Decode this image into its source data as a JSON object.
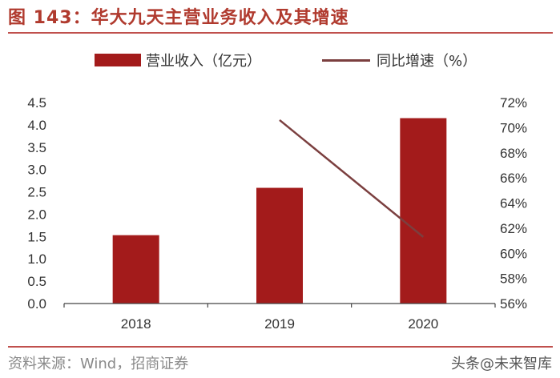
{
  "title": "图 143：华大九天主营业务收入及其增速",
  "source": "资料来源：Wind，招商证券",
  "watermark": "头条@未来智库",
  "colors": {
    "bar": "#a31b1b",
    "line": "#7b3f3f",
    "accent": "#c0504d"
  },
  "chart_data": {
    "type": "bar+line",
    "categories": [
      "2018",
      "2019",
      "2020"
    ],
    "series": [
      {
        "name": "营业收入（亿元）",
        "type": "bar",
        "axis": "left",
        "values": [
          1.53,
          2.59,
          4.15
        ]
      },
      {
        "name": "同比增速（%）",
        "type": "line",
        "axis": "right",
        "values": [
          null,
          70.6,
          61.3
        ]
      }
    ],
    "y_left": {
      "min": 0,
      "max": 4.5,
      "ticks": [
        "0.0",
        "0.5",
        "1.0",
        "1.5",
        "2.0",
        "2.5",
        "3.0",
        "3.5",
        "4.0",
        "4.5"
      ]
    },
    "y_right": {
      "min": 56,
      "max": 72,
      "ticks": [
        "56%",
        "58%",
        "60%",
        "62%",
        "64%",
        "66%",
        "68%",
        "70%",
        "72%"
      ]
    },
    "legend_position": "top",
    "grid": false
  }
}
